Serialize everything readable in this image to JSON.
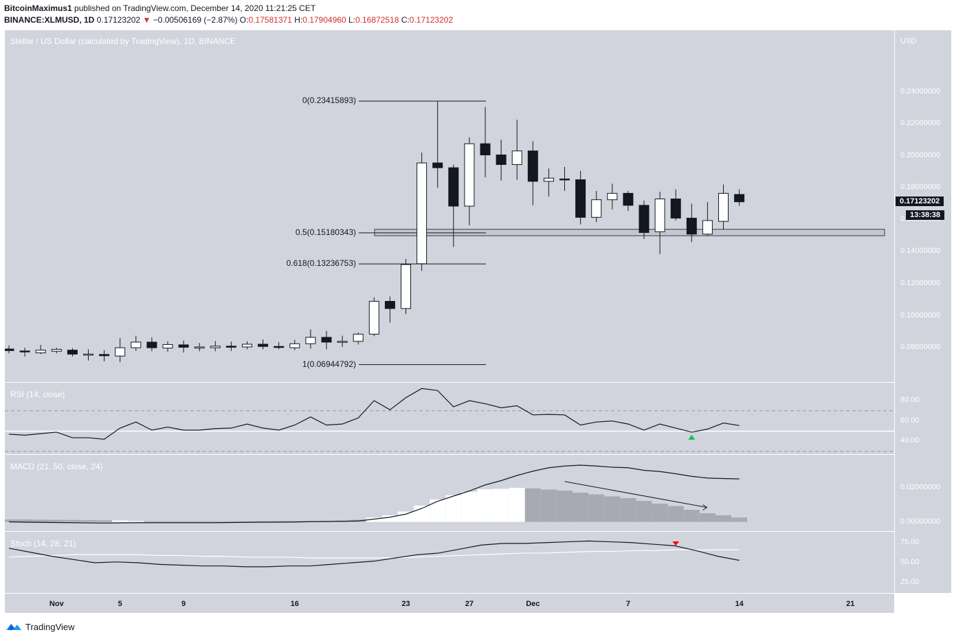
{
  "header": {
    "author": "BitcoinMaximus1",
    "published": "published on TradingView.com, December 14, 2020 11:21:25 CET",
    "symbol": "BINANCE:XLMUSD, 1D",
    "last": "0.17123202",
    "change_arrow": "▼",
    "change": "−0.00506169 (−2.87%)",
    "o_label": "O:",
    "o_val": "0.17581371",
    "h_label": "H:",
    "h_val": "0.17904960",
    "l_label": "L:",
    "l_val": "0.16872518",
    "c_label": "C:",
    "c_val": "0.17123202"
  },
  "main": {
    "title": "Stellar / US Dollar (calculated by TradingView), 1D, BINANCE",
    "currency": "USD",
    "price_ticks": [
      "0.24000000",
      "0.22000000",
      "0.20000000",
      "0.18000000",
      "0.16000000",
      "0.14000000",
      "0.12000000",
      "0.10000000",
      "0.08000000"
    ],
    "last_price_badge": "0.17123202",
    "countdown_badge": "13:38:38",
    "fib_levels": [
      {
        "label": "0(0.23415893)",
        "value": 0.23415893
      },
      {
        "label": "0.5(0.15180343)",
        "value": 0.15180343
      },
      {
        "label": "0.618(0.13236753)",
        "value": 0.13236753
      },
      {
        "label": "1(0.06944792)",
        "value": 0.06944792
      }
    ],
    "support_zone": [
      0.15,
      0.154
    ]
  },
  "rsi": {
    "title": "RSI (14, close)",
    "ticks": [
      "80.00",
      "60.00",
      "40.00"
    ],
    "bands": [
      70,
      30
    ],
    "midline": 50,
    "range": [
      30,
      95
    ]
  },
  "macd": {
    "title": "MACD (21, 50, close, 24)",
    "ticks": [
      "0.02000000",
      "0.00000000"
    ],
    "range": [
      -0.001,
      0.035
    ]
  },
  "stoch": {
    "title": "Stoch (14, 28, 21)",
    "ticks": [
      "75.00",
      "50.00",
      "25.00"
    ],
    "range": [
      15,
      85
    ]
  },
  "x_axis": {
    "labels": [
      {
        "text": "Nov",
        "idx": 3
      },
      {
        "text": "5",
        "idx": 7
      },
      {
        "text": "9",
        "idx": 11
      },
      {
        "text": "16",
        "idx": 18
      },
      {
        "text": "23",
        "idx": 25
      },
      {
        "text": "27",
        "idx": 29
      },
      {
        "text": "Dec",
        "idx": 33
      },
      {
        "text": "7",
        "idx": 39
      },
      {
        "text": "14",
        "idx": 46
      },
      {
        "text": "21",
        "idx": 53
      }
    ]
  },
  "footer": {
    "brand": "TradingView"
  },
  "colors": {
    "up_candle": "#ffffff",
    "down_candle": "#131722",
    "pane_bg": "#d1d4dc",
    "arrow_up": "#00c853",
    "arrow_down": "#ff0000"
  },
  "chart_data": {
    "type": "candlestick",
    "title": "Stellar / US Dollar (calculated by TradingView), 1D, BINANCE",
    "ylabel": "USD",
    "ylim": [
      0.062,
      0.275
    ],
    "candles": [
      {
        "o": 0.0792,
        "h": 0.0815,
        "l": 0.0765,
        "c": 0.0782
      },
      {
        "o": 0.078,
        "h": 0.08,
        "l": 0.0745,
        "c": 0.0775
      },
      {
        "o": 0.0768,
        "h": 0.0818,
        "l": 0.076,
        "c": 0.0785
      },
      {
        "o": 0.0778,
        "h": 0.08,
        "l": 0.0765,
        "c": 0.079
      },
      {
        "o": 0.0785,
        "h": 0.0798,
        "l": 0.0745,
        "c": 0.076
      },
      {
        "o": 0.076,
        "h": 0.079,
        "l": 0.072,
        "c": 0.076
      },
      {
        "o": 0.0758,
        "h": 0.0785,
        "l": 0.0715,
        "c": 0.075
      },
      {
        "o": 0.0748,
        "h": 0.086,
        "l": 0.071,
        "c": 0.08
      },
      {
        "o": 0.08,
        "h": 0.0875,
        "l": 0.078,
        "c": 0.0835
      },
      {
        "o": 0.0835,
        "h": 0.0865,
        "l": 0.0778,
        "c": 0.08
      },
      {
        "o": 0.0798,
        "h": 0.084,
        "l": 0.0775,
        "c": 0.082
      },
      {
        "o": 0.0818,
        "h": 0.0845,
        "l": 0.077,
        "c": 0.0803
      },
      {
        "o": 0.0798,
        "h": 0.083,
        "l": 0.0778,
        "c": 0.0805
      },
      {
        "o": 0.08,
        "h": 0.0842,
        "l": 0.0778,
        "c": 0.081
      },
      {
        "o": 0.081,
        "h": 0.0838,
        "l": 0.078,
        "c": 0.0803
      },
      {
        "o": 0.0805,
        "h": 0.084,
        "l": 0.079,
        "c": 0.0822
      },
      {
        "o": 0.0822,
        "h": 0.0852,
        "l": 0.079,
        "c": 0.0808
      },
      {
        "o": 0.0808,
        "h": 0.0835,
        "l": 0.079,
        "c": 0.0802
      },
      {
        "o": 0.08,
        "h": 0.085,
        "l": 0.0785,
        "c": 0.0825
      },
      {
        "o": 0.0825,
        "h": 0.0915,
        "l": 0.0795,
        "c": 0.0865
      },
      {
        "o": 0.0865,
        "h": 0.0905,
        "l": 0.079,
        "c": 0.0835
      },
      {
        "o": 0.0838,
        "h": 0.0875,
        "l": 0.0805,
        "c": 0.084
      },
      {
        "o": 0.084,
        "h": 0.0895,
        "l": 0.082,
        "c": 0.0885
      },
      {
        "o": 0.0885,
        "h": 0.1115,
        "l": 0.0872,
        "c": 0.109
      },
      {
        "o": 0.109,
        "h": 0.112,
        "l": 0.0958,
        "c": 0.1045
      },
      {
        "o": 0.1045,
        "h": 0.1355,
        "l": 0.101,
        "c": 0.132
      },
      {
        "o": 0.1325,
        "h": 0.202,
        "l": 0.128,
        "c": 0.1955
      },
      {
        "o": 0.1955,
        "h": 0.2342,
        "l": 0.18,
        "c": 0.1925
      },
      {
        "o": 0.1925,
        "h": 0.1945,
        "l": 0.143,
        "c": 0.1685
      },
      {
        "o": 0.1685,
        "h": 0.2115,
        "l": 0.1565,
        "c": 0.2075
      },
      {
        "o": 0.2075,
        "h": 0.2305,
        "l": 0.1865,
        "c": 0.2005
      },
      {
        "o": 0.2005,
        "h": 0.21,
        "l": 0.1845,
        "c": 0.1945
      },
      {
        "o": 0.1945,
        "h": 0.2225,
        "l": 0.185,
        "c": 0.203
      },
      {
        "o": 0.203,
        "h": 0.209,
        "l": 0.169,
        "c": 0.184
      },
      {
        "o": 0.184,
        "h": 0.192,
        "l": 0.1745,
        "c": 0.186
      },
      {
        "o": 0.1855,
        "h": 0.193,
        "l": 0.178,
        "c": 0.185
      },
      {
        "o": 0.185,
        "h": 0.1905,
        "l": 0.157,
        "c": 0.1615
      },
      {
        "o": 0.1615,
        "h": 0.178,
        "l": 0.1585,
        "c": 0.1725
      },
      {
        "o": 0.1725,
        "h": 0.1825,
        "l": 0.1665,
        "c": 0.1765
      },
      {
        "o": 0.1765,
        "h": 0.178,
        "l": 0.1655,
        "c": 0.169
      },
      {
        "o": 0.169,
        "h": 0.172,
        "l": 0.148,
        "c": 0.152
      },
      {
        "o": 0.1525,
        "h": 0.1775,
        "l": 0.1385,
        "c": 0.173
      },
      {
        "o": 0.173,
        "h": 0.179,
        "l": 0.1595,
        "c": 0.161
      },
      {
        "o": 0.161,
        "h": 0.17,
        "l": 0.146,
        "c": 0.151
      },
      {
        "o": 0.151,
        "h": 0.171,
        "l": 0.15,
        "c": 0.1595
      },
      {
        "o": 0.159,
        "h": 0.182,
        "l": 0.154,
        "c": 0.1765
      },
      {
        "o": 0.1758,
        "h": 0.179,
        "l": 0.1687,
        "c": 0.1712
      }
    ],
    "rsi": [
      47,
      46,
      47.5,
      49,
      43.5,
      43.5,
      42,
      53,
      59,
      51,
      54,
      51,
      51,
      52.5,
      53,
      57,
      53,
      51,
      56,
      64,
      56,
      57,
      63,
      80,
      71,
      83,
      92,
      90,
      74,
      80,
      77,
      73,
      75,
      66,
      66.5,
      66,
      56,
      59,
      60,
      57,
      51,
      57,
      53,
      49,
      52,
      58,
      55.5
    ],
    "macd_line": [
      0.0,
      -0.0002,
      -0.0003,
      -0.0004,
      -0.0005,
      -0.0006,
      -0.0007,
      -0.0006,
      -0.0005,
      -0.0005,
      -0.0005,
      -0.0005,
      -0.0005,
      -0.0005,
      -0.0004,
      -0.0003,
      -0.0002,
      -0.0002,
      -0.0001,
      0.0001,
      0.0002,
      0.0003,
      0.0005,
      0.0016,
      0.0027,
      0.0045,
      0.0078,
      0.012,
      0.015,
      0.018,
      0.0215,
      0.024,
      0.027,
      0.0295,
      0.0315,
      0.0325,
      0.033,
      0.0325,
      0.0318,
      0.0315,
      0.03,
      0.0293,
      0.028,
      0.0265,
      0.0255,
      0.0252,
      0.025
    ],
    "macd_hist": [
      0.0014,
      0.0014,
      0.0013,
      0.0012,
      0.0011,
      0.001,
      0.0009,
      0.0008,
      0.0005,
      0.0004,
      0.0003,
      0.0004,
      0.0003,
      0.0003,
      0.0003,
      0.0003,
      0.0004,
      0.0005,
      0.0005,
      0.0005,
      0.0006,
      0.0008,
      0.0012,
      0.0025,
      0.0038,
      0.006,
      0.0095,
      0.013,
      0.0155,
      0.0175,
      0.019,
      0.0192,
      0.0198,
      0.0195,
      0.0188,
      0.0182,
      0.017,
      0.016,
      0.0148,
      0.0138,
      0.0122,
      0.0106,
      0.0092,
      0.007,
      0.005,
      0.0038,
      0.0025
    ],
    "stoch_k": [
      68,
      63,
      58,
      54,
      50,
      51,
      50,
      48,
      47,
      46,
      46,
      45,
      45,
      46,
      46,
      48,
      50,
      52,
      56,
      60,
      62,
      67,
      72,
      74,
      74,
      75,
      76,
      77,
      76,
      75,
      73,
      71,
      65,
      58,
      53
    ],
    "stoch_d": [
      57,
      58,
      59,
      60,
      60,
      60,
      60,
      59,
      59,
      58,
      58,
      57,
      57,
      57,
      56,
      56,
      56,
      56,
      56,
      57,
      58,
      59,
      60,
      61,
      62,
      62,
      63,
      64,
      64,
      65,
      65,
      66,
      66,
      66,
      66
    ],
    "stoch_start_idx": 0,
    "stoch_k_indices": [
      0,
      2,
      4,
      6,
      8,
      10,
      12,
      14,
      16,
      18,
      19,
      20,
      22,
      24,
      26,
      27,
      28,
      29,
      31,
      33,
      35,
      37,
      38,
      39,
      40,
      41,
      42,
      43,
      44,
      45,
      46,
      46,
      46,
      46,
      46
    ]
  }
}
